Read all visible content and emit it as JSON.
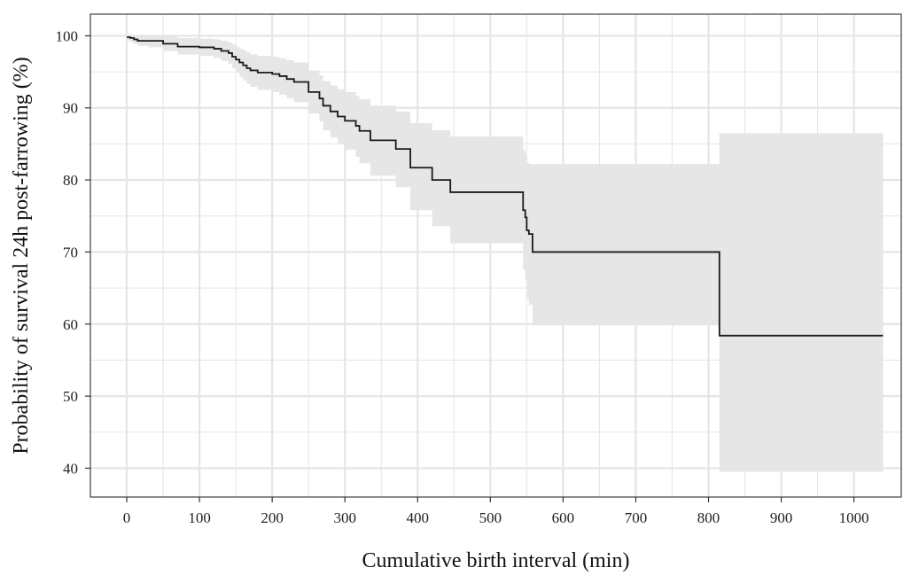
{
  "chart_data": {
    "type": "line",
    "subtype": "kaplan-meier-step",
    "title": "",
    "xlabel": "Cumulative birth interval (min)",
    "ylabel": "Probability of survival 24h post-farrowing (%)",
    "xlim": [
      -50,
      1065
    ],
    "ylim": [
      36,
      103
    ],
    "x_ticks": [
      0,
      100,
      200,
      300,
      400,
      500,
      600,
      700,
      800,
      900,
      1000
    ],
    "y_ticks": [
      40,
      50,
      60,
      70,
      80,
      90,
      100
    ],
    "grid": true,
    "colors": {
      "line": "#1a1a1a",
      "band": "#e6e6e6",
      "grid": "#e5e5e5",
      "frame": "#4d4d4d"
    },
    "series": [
      {
        "x": [
          0,
          5,
          10,
          15,
          30,
          50,
          70,
          100,
          120,
          130,
          140,
          145,
          150,
          155,
          160,
          165,
          170,
          180,
          200,
          210,
          220,
          230,
          250,
          265,
          270,
          280,
          290,
          300,
          315,
          320,
          335,
          370,
          390,
          420,
          445,
          545,
          548,
          550,
          553,
          558,
          815,
          1040
        ],
        "y": [
          99.8,
          99.7,
          99.5,
          99.3,
          99.3,
          98.9,
          98.5,
          98.4,
          98.2,
          97.9,
          97.6,
          97.1,
          96.7,
          96.3,
          95.9,
          95.5,
          95.2,
          94.9,
          94.7,
          94.4,
          94.0,
          93.6,
          92.2,
          91.3,
          90.3,
          89.5,
          88.8,
          88.2,
          87.5,
          86.8,
          85.5,
          84.3,
          81.7,
          80.0,
          78.3,
          75.8,
          74.8,
          73.0,
          72.5,
          70.0,
          58.4,
          58.4
        ],
        "lower": [
          99.3,
          99.1,
          98.9,
          98.6,
          98.4,
          97.9,
          97.4,
          97.2,
          96.9,
          96.5,
          96.1,
          95.5,
          94.9,
          94.3,
          93.8,
          93.3,
          92.9,
          92.5,
          92.2,
          91.8,
          91.3,
          90.8,
          89.2,
          88.1,
          86.9,
          85.9,
          85.0,
          84.2,
          83.2,
          82.3,
          80.6,
          79.0,
          75.8,
          73.6,
          71.2,
          67.5,
          66.2,
          63.6,
          62.7,
          59.8,
          39.5,
          39.5
        ],
        "upper": [
          100,
          100,
          100,
          100,
          100,
          99.9,
          99.7,
          99.6,
          99.5,
          99.3,
          99.1,
          98.8,
          98.5,
          98.2,
          98.0,
          97.7,
          97.4,
          97.2,
          97.1,
          96.9,
          96.6,
          96.3,
          95.2,
          94.5,
          93.7,
          93.1,
          92.6,
          92.2,
          91.7,
          91.2,
          90.3,
          89.5,
          87.9,
          86.9,
          86.0,
          84.2,
          83.6,
          82.5,
          82.2,
          82.2,
          86.5,
          86.5
        ]
      }
    ]
  }
}
